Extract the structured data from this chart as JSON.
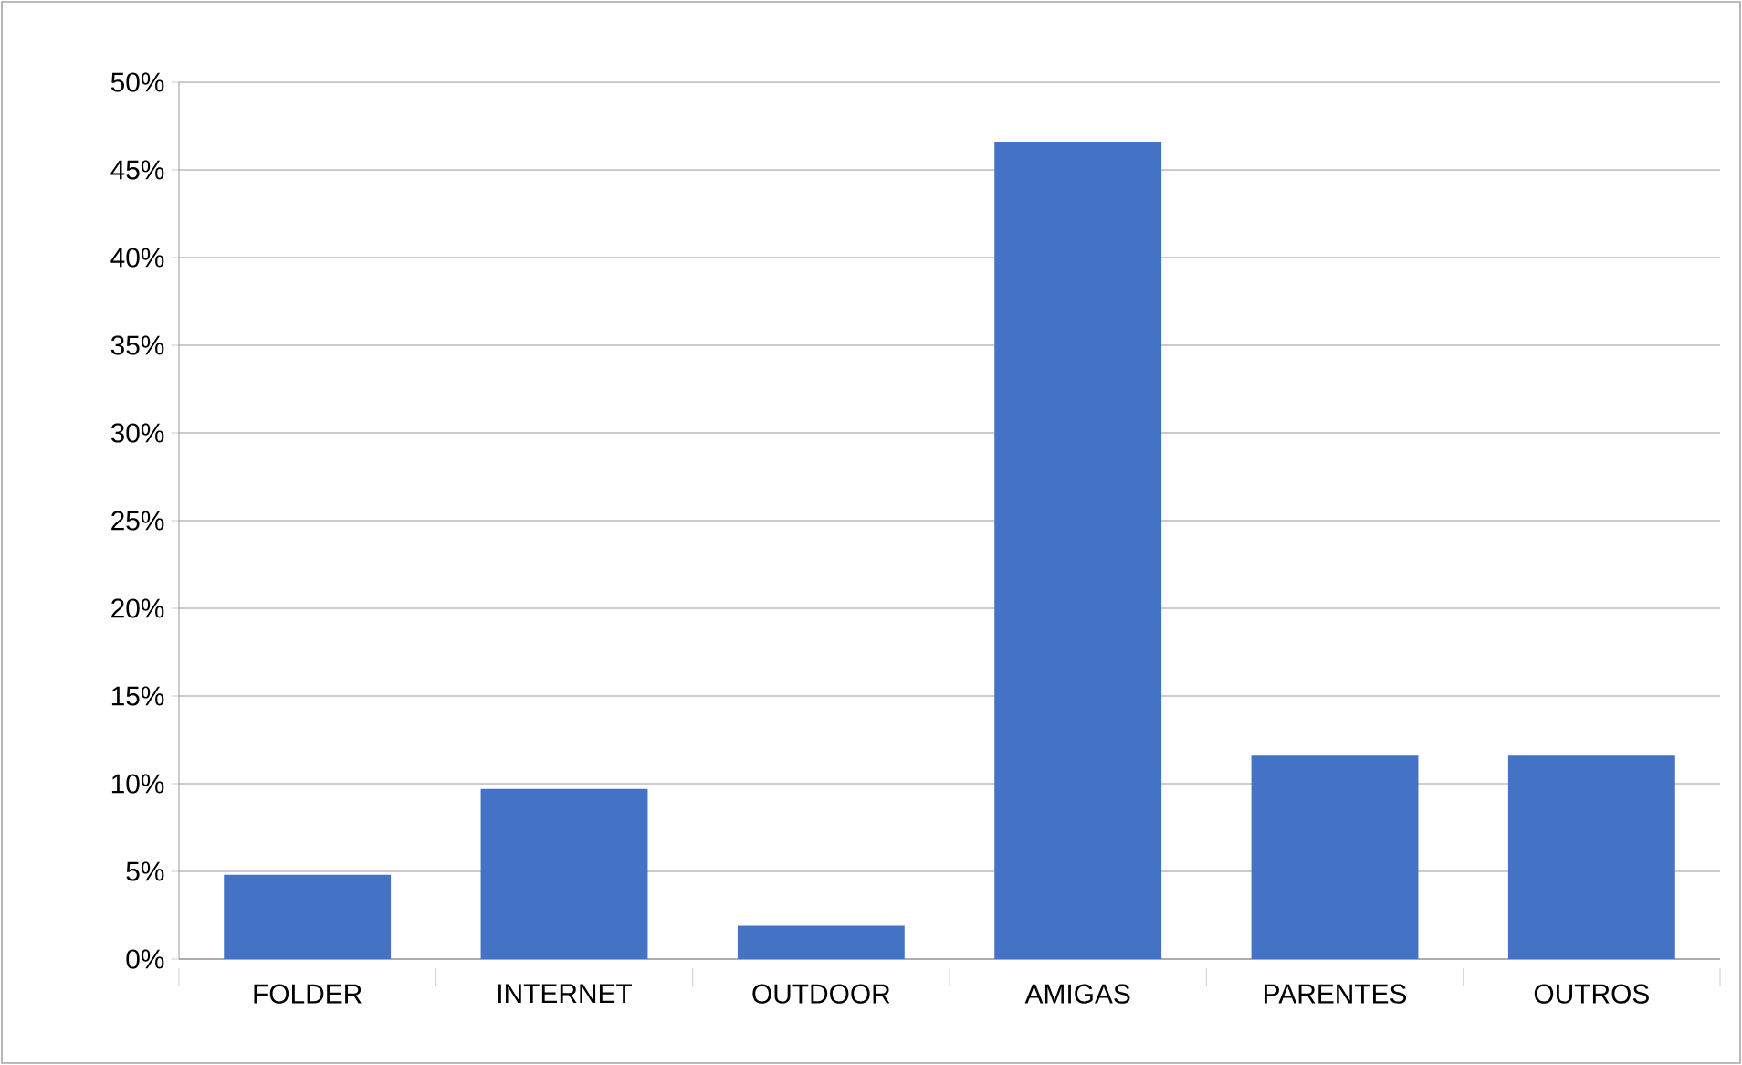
{
  "chart_data": {
    "type": "bar",
    "categories": [
      "FOLDER",
      "INTERNET",
      "OUTDOOR",
      "AMIGAS",
      "PARENTES",
      "OUTROS"
    ],
    "values": [
      4.8,
      9.7,
      1.9,
      46.6,
      11.6,
      11.6
    ],
    "color": "#4472c4",
    "ylim": [
      0,
      50
    ],
    "yticks": [
      {
        "value": 0,
        "label": "0%"
      },
      {
        "value": 5,
        "label": "5%"
      },
      {
        "value": 10,
        "label": "10%"
      },
      {
        "value": 15,
        "label": "15%"
      },
      {
        "value": 20,
        "label": "20%"
      },
      {
        "value": 25,
        "label": "25%"
      },
      {
        "value": 30,
        "label": "30%"
      },
      {
        "value": 35,
        "label": "35%"
      },
      {
        "value": 40,
        "label": "40%"
      },
      {
        "value": 45,
        "label": "45%"
      },
      {
        "value": 50,
        "label": "50%"
      }
    ],
    "grid": "y"
  }
}
